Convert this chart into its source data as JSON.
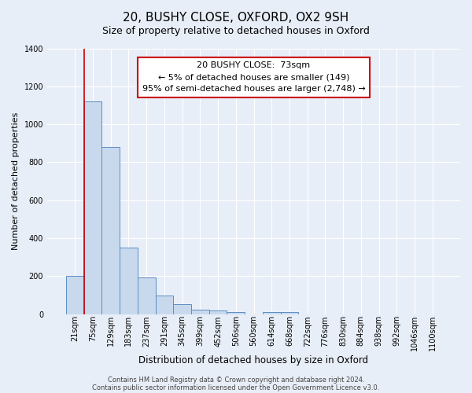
{
  "title_line1": "20, BUSHY CLOSE, OXFORD, OX2 9SH",
  "title_line2": "Size of property relative to detached houses in Oxford",
  "bar_labels": [
    "21sqm",
    "75sqm",
    "129sqm",
    "183sqm",
    "237sqm",
    "291sqm",
    "345sqm",
    "399sqm",
    "452sqm",
    "506sqm",
    "560sqm",
    "614sqm",
    "668sqm",
    "722sqm",
    "776sqm",
    "830sqm",
    "884sqm",
    "938sqm",
    "992sqm",
    "1046sqm",
    "1100sqm"
  ],
  "bar_heights": [
    200,
    1120,
    880,
    350,
    193,
    100,
    55,
    25,
    20,
    12,
    0,
    12,
    10,
    0,
    0,
    0,
    0,
    0,
    0,
    0,
    0
  ],
  "bar_color": "#c9d9ed",
  "bar_edge_color": "#5b8ec4",
  "ylim": [
    0,
    1400
  ],
  "yticks": [
    0,
    200,
    400,
    600,
    800,
    1000,
    1200,
    1400
  ],
  "xlabel": "Distribution of detached houses by size in Oxford",
  "ylabel": "Number of detached properties",
  "red_line_x": 0.5,
  "annotation_title": "20 BUSHY CLOSE:  73sqm",
  "annotation_line1": "← 5% of detached houses are smaller (149)",
  "annotation_line2": "95% of semi-detached houses are larger (2,748) →",
  "annotation_box_color": "#ffffff",
  "annotation_box_edge_color": "#cc0000",
  "footer_line1": "Contains HM Land Registry data © Crown copyright and database right 2024.",
  "footer_line2": "Contains public sector information licensed under the Open Government Licence v3.0.",
  "bg_color": "#e8eef7",
  "grid_color": "#ffffff",
  "title_fontsize": 11,
  "subtitle_fontsize": 9,
  "annotation_fontsize": 8,
  "xlabel_fontsize": 8.5,
  "ylabel_fontsize": 8,
  "tick_fontsize": 7,
  "footer_fontsize": 6
}
